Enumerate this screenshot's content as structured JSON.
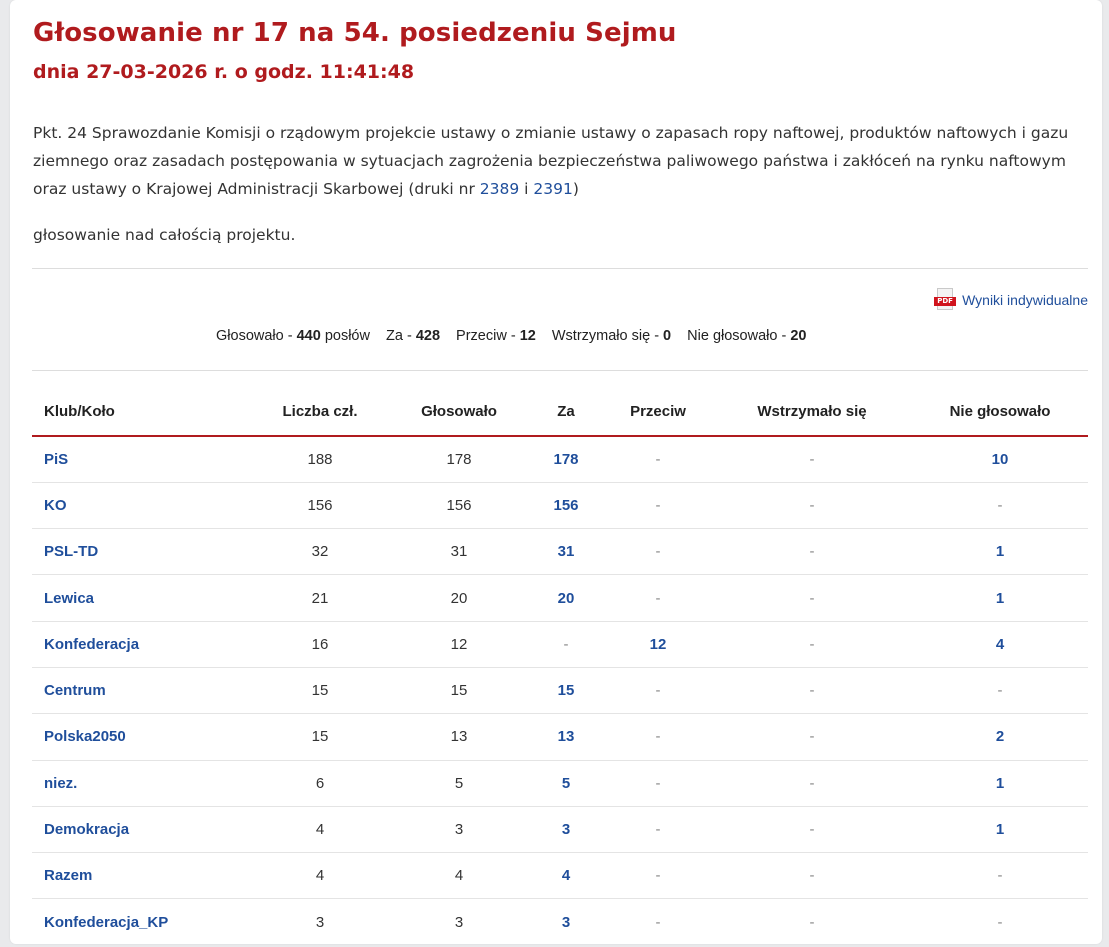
{
  "header": {
    "title": "Głosowanie nr 17 na 54. posiedzeniu Sejmu",
    "subtitle": "dnia 27-03-2026 r. o godz. 11:41:48"
  },
  "description": {
    "text_before": "Pkt. 24 Sprawozdanie Komisji o rządowym projekcie ustawy o zmianie ustawy o zapasach ropy naftowej, produktów naftowych i gazu ziemnego oraz zasadach postępowania w sytuacjach zagrożenia bezpieczeństwa paliwowego państwa i zakłóceń na rynku naftowym oraz ustawy o Krajowej Administracji Skarbowej (druki nr ",
    "print1": "2389",
    "connector": " i ",
    "print2": "2391",
    "text_after": ")"
  },
  "vote_type": "głosowanie nad całością projektu.",
  "pdf_link": {
    "icon": "pdf-icon",
    "icon_text": "PDF",
    "label": "Wyniki indywidualne"
  },
  "summary": {
    "voted_label": "Głosowało - ",
    "voted_value": "440",
    "voted_suffix": " posłów",
    "for_label": "Za - ",
    "for_value": "428",
    "against_label": "Przeciw - ",
    "against_value": "12",
    "abstain_label": "Wstrzymało się - ",
    "abstain_value": "0",
    "not_voted_label": "Nie głosowało - ",
    "not_voted_value": "20"
  },
  "table": {
    "headers": [
      "Klub/Koło",
      "Liczba czł.",
      "Głosowało",
      "Za",
      "Przeciw",
      "Wstrzymało się",
      "Nie głosowało"
    ],
    "rows": [
      [
        "PiS",
        "188",
        "178",
        "178",
        "-",
        "-",
        "10"
      ],
      [
        "KO",
        "156",
        "156",
        "156",
        "-",
        "-",
        "-"
      ],
      [
        "PSL-TD",
        "32",
        "31",
        "31",
        "-",
        "-",
        "1"
      ],
      [
        "Lewica",
        "21",
        "20",
        "20",
        "-",
        "-",
        "1"
      ],
      [
        "Konfederacja",
        "16",
        "12",
        "-",
        "12",
        "-",
        "4"
      ],
      [
        "Centrum",
        "15",
        "15",
        "15",
        "-",
        "-",
        "-"
      ],
      [
        "Polska2050",
        "15",
        "13",
        "13",
        "-",
        "-",
        "2"
      ],
      [
        "niez.",
        "6",
        "5",
        "5",
        "-",
        "-",
        "1"
      ],
      [
        "Demokracja",
        "4",
        "3",
        "3",
        "-",
        "-",
        "1"
      ],
      [
        "Razem",
        "4",
        "4",
        "4",
        "-",
        "-",
        "-"
      ],
      [
        "Konfederacja_KP",
        "3",
        "3",
        "3",
        "-",
        "-",
        "-"
      ]
    ]
  },
  "colors": {
    "title_red": "#b01b1e",
    "link_blue": "#1f4e9b"
  }
}
